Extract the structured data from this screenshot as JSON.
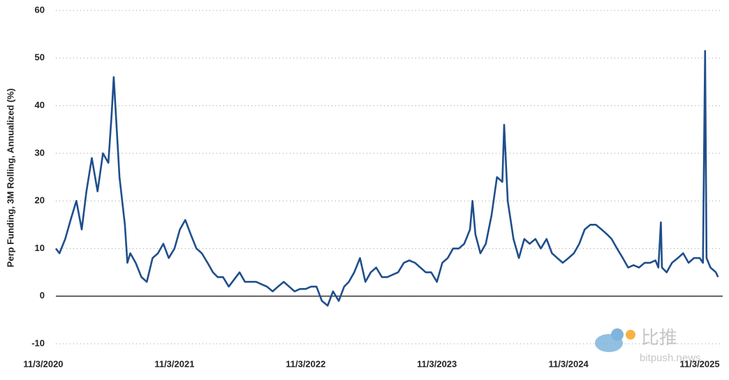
{
  "chart_data": {
    "type": "line",
    "y_label": "Perp Funding, 3M Rolling, Annualized (%)",
    "watermark": [
      "比推",
      "bitpush.news"
    ],
    "xlim": [
      "12/8/2020",
      "1/6/2026"
    ],
    "xticks": [
      "11/3/2020",
      "11/3/2021",
      "11/3/2022",
      "11/3/2023",
      "11/3/2024",
      "11/3/2025"
    ],
    "ylim": [
      -10,
      60
    ],
    "yticks": [
      -10,
      0,
      10,
      20,
      30,
      40,
      50,
      60
    ],
    "grid": true,
    "x": [
      "12/8/2020",
      "12/18/2020",
      "1/3/2021",
      "1/18/2021",
      "2/3/2021",
      "2/18/2021",
      "3/3/2021",
      "3/18/2021",
      "4/3/2021",
      "4/18/2021",
      "5/3/2021",
      "5/12/2021",
      "5/18/2021",
      "6/3/2021",
      "6/18/2021",
      "6/25/2021",
      "7/3/2021",
      "7/18/2021",
      "8/3/2021",
      "8/18/2021",
      "9/3/2021",
      "9/18/2021",
      "10/3/2021",
      "10/18/2021",
      "11/3/2021",
      "11/18/2021",
      "12/3/2021",
      "12/18/2021",
      "1/3/2022",
      "1/18/2022",
      "2/3/2022",
      "2/18/2022",
      "3/3/2022",
      "3/18/2022",
      "4/3/2022",
      "4/18/2022",
      "5/3/2022",
      "5/18/2022",
      "6/3/2022",
      "6/18/2022",
      "7/3/2022",
      "7/18/2022",
      "8/3/2022",
      "8/18/2022",
      "9/3/2022",
      "9/18/2022",
      "10/3/2022",
      "10/18/2022",
      "11/3/2022",
      "11/18/2022",
      "12/3/2022",
      "12/18/2022",
      "1/3/2023",
      "1/18/2023",
      "2/3/2023",
      "2/18/2023",
      "3/3/2023",
      "3/18/2023",
      "4/3/2023",
      "4/18/2023",
      "5/3/2023",
      "5/18/2023",
      "6/3/2023",
      "6/18/2023",
      "7/3/2023",
      "7/18/2023",
      "8/3/2023",
      "8/18/2023",
      "9/3/2023",
      "9/18/2023",
      "10/3/2023",
      "10/18/2023",
      "11/3/2023",
      "11/18/2023",
      "12/3/2023",
      "12/18/2023",
      "1/3/2024",
      "1/18/2024",
      "2/3/2024",
      "2/10/2024",
      "2/18/2024",
      "3/3/2024",
      "3/18/2024",
      "4/3/2024",
      "4/18/2024",
      "5/3/2024",
      "5/8/2024",
      "5/18/2024",
      "6/3/2024",
      "6/18/2024",
      "7/3/2024",
      "7/18/2024",
      "8/3/2024",
      "8/18/2024",
      "9/3/2024",
      "9/18/2024",
      "10/3/2024",
      "10/18/2024",
      "11/3/2024",
      "11/18/2024",
      "12/3/2024",
      "12/18/2024",
      "1/3/2025",
      "1/18/2025",
      "2/3/2025",
      "2/18/2025",
      "3/3/2025",
      "3/18/2025",
      "4/3/2025",
      "4/18/2025",
      "5/3/2025",
      "5/18/2025",
      "6/3/2025",
      "6/18/2025",
      "7/3/2025",
      "7/11/2025",
      "7/18/2025",
      "7/21/2025",
      "8/3/2025",
      "8/18/2025",
      "9/3/2025",
      "9/18/2025",
      "10/3/2025",
      "10/18/2025",
      "11/3/2025",
      "11/12/2025",
      "11/18/2025",
      "11/22/2025",
      "12/3/2025",
      "12/18/2025",
      "12/24/2025"
    ],
    "series": [
      {
        "name": "Perp Funding",
        "color": "#1f4e8c",
        "values": [
          10,
          9,
          12,
          16,
          20,
          14,
          22,
          29,
          22,
          30,
          28,
          38,
          46,
          25,
          15,
          7,
          9,
          7,
          4,
          3,
          8,
          9,
          11,
          8,
          10,
          14,
          16,
          13,
          10,
          9,
          7,
          5,
          4,
          4,
          2,
          3.5,
          5,
          3,
          3,
          3,
          2.5,
          2,
          1,
          2,
          3,
          2,
          1,
          1.5,
          1.5,
          2,
          2,
          -1,
          -2,
          1,
          -1,
          2,
          3,
          5,
          8,
          3,
          5,
          6,
          4,
          4,
          4.5,
          5,
          7,
          7.5,
          7,
          6,
          5,
          5,
          3,
          7,
          8,
          10,
          10,
          11,
          14,
          20,
          13,
          9,
          11,
          17,
          25,
          24,
          36,
          20,
          12,
          8,
          12,
          11,
          12,
          10,
          12,
          9,
          8,
          7,
          8,
          9,
          11,
          14,
          15,
          15,
          14,
          13,
          12,
          10,
          8,
          6,
          6.5,
          6,
          7,
          7,
          7.5,
          6,
          15.5,
          6,
          5,
          7,
          8,
          9,
          7,
          8,
          8,
          7,
          51.5,
          8,
          6,
          5,
          4
        ]
      }
    ]
  }
}
